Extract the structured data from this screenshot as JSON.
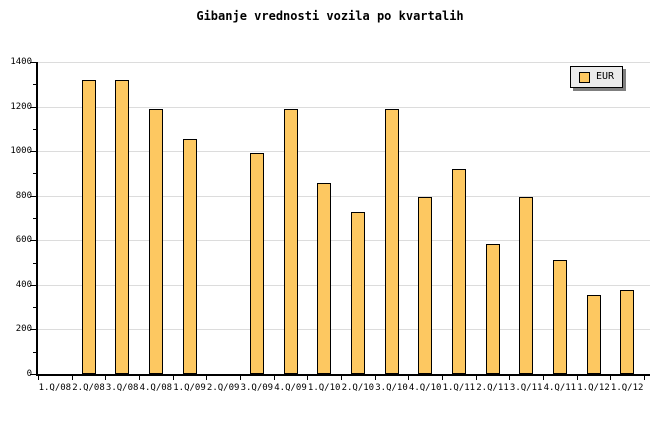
{
  "title": "Gibanje vrednosti vozila po kvartalih",
  "legend": {
    "label": "EUR"
  },
  "colors": {
    "background": "#FFFFFF",
    "bar_fill": "#FDC861",
    "bar_border": "#000000",
    "gridline": "#DCDCDC",
    "axis": "#000000",
    "text": "#000000",
    "legend_bg": "#EBEBEB",
    "legend_border": "#000000",
    "legend_shadow": "#7F7F7F"
  },
  "chart_data": {
    "type": "bar",
    "title": "Gibanje vrednosti vozila po kvartalih",
    "categories": [
      "1.Q/08",
      "2.Q/08",
      "3.Q/08",
      "4.Q/08",
      "1.Q/09",
      "2.Q/09",
      "3.Q/09",
      "4.Q/09",
      "1.Q/10",
      "2.Q/10",
      "3.Q/10",
      "4.Q/10",
      "1.Q/11",
      "2.Q/11",
      "3.Q/11",
      "4.Q/11",
      "1.Q/12",
      "1.Q/12"
    ],
    "series": [
      {
        "name": "EUR",
        "values": [
          null,
          1320,
          1320,
          1190,
          1055,
          null,
          990,
          1190,
          855,
          725,
          1190,
          795,
          920,
          585,
          795,
          510,
          355,
          378
        ]
      }
    ],
    "xlabel": "",
    "ylabel": "",
    "ylim": [
      0,
      1400
    ],
    "ytick_major": 200,
    "ytick_minor": 100,
    "grid": "horizontal",
    "legend_position": "top-right"
  }
}
